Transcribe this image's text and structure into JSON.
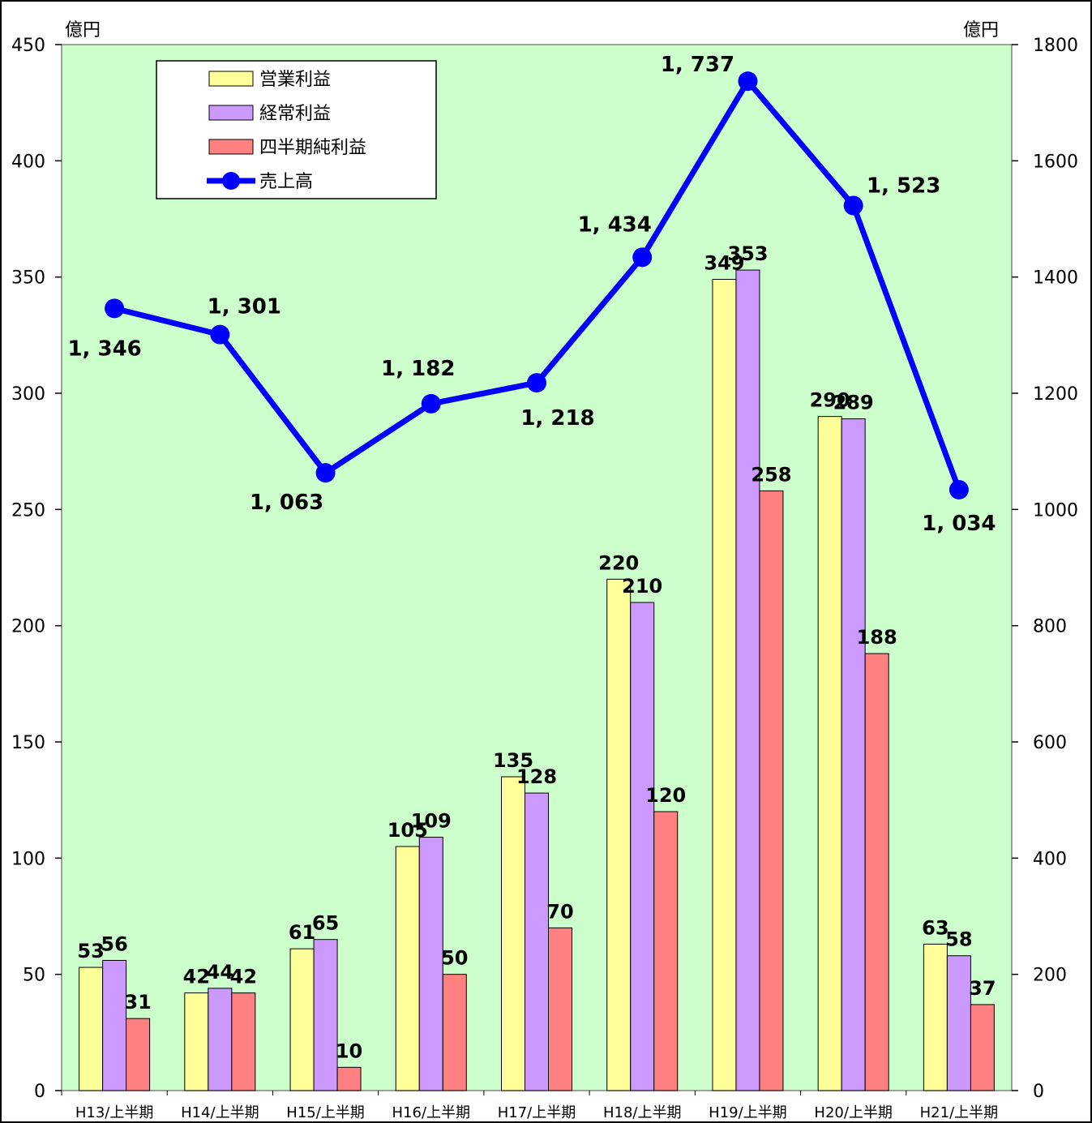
{
  "chart_data": {
    "type": "bar",
    "title": "",
    "left_axis_unit": "億円",
    "right_axis_unit": "億円",
    "categories": [
      "H13/上半期",
      "H14/上半期",
      "H15/上半期",
      "H16/上半期",
      "H17/上半期",
      "H18/上半期",
      "H19/上半期",
      "H20/上半期",
      "H21/上半期"
    ],
    "left_ylim": [
      0,
      450
    ],
    "left_yticks": [
      0,
      50,
      100,
      150,
      200,
      250,
      300,
      350,
      400,
      450
    ],
    "right_ylim": [
      0,
      1800
    ],
    "right_yticks": [
      0,
      200,
      400,
      600,
      800,
      1000,
      1200,
      1400,
      1600,
      1800
    ],
    "grid": false,
    "legend_position": "top-left",
    "series": [
      {
        "name": "営業利益",
        "type": "bar",
        "axis": "left",
        "color": "#FFFF99",
        "values": [
          53,
          42,
          61,
          105,
          135,
          220,
          349,
          290,
          63
        ]
      },
      {
        "name": "経常利益",
        "type": "bar",
        "axis": "left",
        "color": "#CC99FF",
        "values": [
          56,
          44,
          65,
          109,
          128,
          210,
          353,
          289,
          58
        ]
      },
      {
        "name": "四半期純利益",
        "type": "bar",
        "axis": "left",
        "color": "#FF8080",
        "values": [
          31,
          42,
          10,
          50,
          70,
          120,
          258,
          188,
          37
        ]
      },
      {
        "name": "売上高",
        "type": "line",
        "axis": "right",
        "color": "#0000FF",
        "values": [
          1346,
          1301,
          1063,
          1182,
          1218,
          1434,
          1737,
          1523,
          1034
        ],
        "value_labels": [
          "1, 346",
          "1, 301",
          "1, 063",
          "1, 182",
          "1, 218",
          "1, 434",
          "1, 737",
          "1, 523",
          "1, 034"
        ]
      }
    ],
    "plot_background": "#CCFFCC"
  }
}
